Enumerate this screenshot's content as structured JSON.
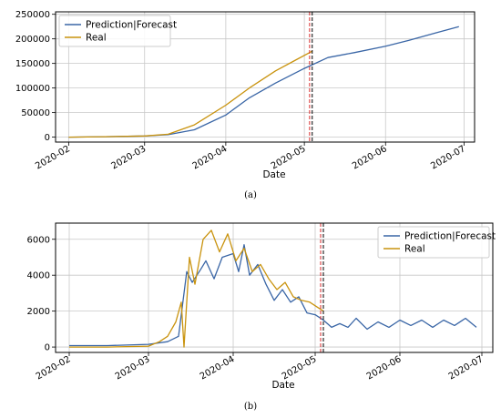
{
  "colors": {
    "prediction": "#3a66a6",
    "real": "#c9930e",
    "vline_red": "#d62728",
    "vline_black": "#000000",
    "grid": "#c8c8c8"
  },
  "chart_data": [
    {
      "type": "line",
      "caption_label": "a",
      "xlabel": "Date",
      "ylabel": "",
      "xlim": [
        "2020-01-27",
        "2020-07-05"
      ],
      "ylim": [
        -10000,
        255000
      ],
      "x_ticks": [
        "2020-02",
        "2020-03",
        "2020-04",
        "2020-05",
        "2020-06",
        "2020-07"
      ],
      "y_ticks": [
        "0",
        "50000",
        "100000",
        "150000",
        "200000",
        "250000"
      ],
      "y_tick_values": [
        0,
        50000,
        100000,
        150000,
        200000,
        250000
      ],
      "grid": true,
      "legend_position": "upper-left",
      "vertical_markers": [
        "2020-05-03",
        "2020-05-04"
      ],
      "series": [
        {
          "name": "Prediction|Forecast",
          "color_key": "prediction",
          "points": [
            [
              "2020-02-01",
              0
            ],
            [
              "2020-02-15",
              1000
            ],
            [
              "2020-03-01",
              2500
            ],
            [
              "2020-03-10",
              5000
            ],
            [
              "2020-03-20",
              15000
            ],
            [
              "2020-04-01",
              45000
            ],
            [
              "2020-04-10",
              80000
            ],
            [
              "2020-04-20",
              110000
            ],
            [
              "2020-05-01",
              140000
            ],
            [
              "2020-05-10",
              162000
            ],
            [
              "2020-05-20",
              172000
            ],
            [
              "2020-06-01",
              185000
            ],
            [
              "2020-06-10",
              197000
            ],
            [
              "2020-06-20",
              212000
            ],
            [
              "2020-06-29",
              225000
            ]
          ]
        },
        {
          "name": "Real",
          "color_key": "real",
          "points": [
            [
              "2020-02-01",
              0
            ],
            [
              "2020-02-15",
              1000
            ],
            [
              "2020-03-01",
              2500
            ],
            [
              "2020-03-10",
              6000
            ],
            [
              "2020-03-20",
              25000
            ],
            [
              "2020-04-01",
              65000
            ],
            [
              "2020-04-10",
              100000
            ],
            [
              "2020-04-20",
              135000
            ],
            [
              "2020-04-27",
              155000
            ],
            [
              "2020-05-04",
              175000
            ]
          ]
        }
      ]
    },
    {
      "type": "line",
      "caption_label": "b",
      "xlabel": "Date",
      "ylabel": "",
      "xlim": [
        "2020-01-27",
        "2020-07-05"
      ],
      "ylim": [
        -300,
        6900
      ],
      "x_ticks": [
        "2020-02",
        "2020-03",
        "2020-04",
        "2020-05",
        "2020-06",
        "2020-07"
      ],
      "y_ticks": [
        "0",
        "2000",
        "4000",
        "6000"
      ],
      "y_tick_values": [
        0,
        2000,
        4000,
        6000
      ],
      "grid": true,
      "legend_position": "upper-right",
      "vertical_markers": [
        "2020-05-03",
        "2020-05-04"
      ],
      "series": [
        {
          "name": "Prediction|Forecast",
          "color_key": "prediction",
          "points": [
            [
              "2020-02-01",
              80
            ],
            [
              "2020-02-15",
              80
            ],
            [
              "2020-03-01",
              150
            ],
            [
              "2020-03-08",
              300
            ],
            [
              "2020-03-12",
              600
            ],
            [
              "2020-03-15",
              4200
            ],
            [
              "2020-03-17",
              3600
            ],
            [
              "2020-03-20",
              4300
            ],
            [
              "2020-03-22",
              4800
            ],
            [
              "2020-03-25",
              3800
            ],
            [
              "2020-03-28",
              5000
            ],
            [
              "2020-04-01",
              5200
            ],
            [
              "2020-04-03",
              4200
            ],
            [
              "2020-04-05",
              5700
            ],
            [
              "2020-04-07",
              4000
            ],
            [
              "2020-04-10",
              4600
            ],
            [
              "2020-04-13",
              3500
            ],
            [
              "2020-04-16",
              2600
            ],
            [
              "2020-04-19",
              3200
            ],
            [
              "2020-04-22",
              2500
            ],
            [
              "2020-04-25",
              2800
            ],
            [
              "2020-04-28",
              1900
            ],
            [
              "2020-05-01",
              1800
            ],
            [
              "2020-05-04",
              1500
            ],
            [
              "2020-05-07",
              1100
            ],
            [
              "2020-05-10",
              1300
            ],
            [
              "2020-05-13",
              1100
            ],
            [
              "2020-05-16",
              1600
            ],
            [
              "2020-05-20",
              1000
            ],
            [
              "2020-05-24",
              1400
            ],
            [
              "2020-05-28",
              1100
            ],
            [
              "2020-06-01",
              1500
            ],
            [
              "2020-06-05",
              1200
            ],
            [
              "2020-06-09",
              1500
            ],
            [
              "2020-06-13",
              1100
            ],
            [
              "2020-06-17",
              1500
            ],
            [
              "2020-06-21",
              1200
            ],
            [
              "2020-06-25",
              1600
            ],
            [
              "2020-06-29",
              1100
            ]
          ]
        },
        {
          "name": "Real",
          "color_key": "real",
          "points": [
            [
              "2020-02-01",
              0
            ],
            [
              "2020-02-15",
              0
            ],
            [
              "2020-03-01",
              50
            ],
            [
              "2020-03-05",
              300
            ],
            [
              "2020-03-08",
              600
            ],
            [
              "2020-03-11",
              1400
            ],
            [
              "2020-03-13",
              2500
            ],
            [
              "2020-03-14",
              0
            ],
            [
              "2020-03-16",
              5000
            ],
            [
              "2020-03-18",
              3500
            ],
            [
              "2020-03-21",
              6000
            ],
            [
              "2020-03-24",
              6500
            ],
            [
              "2020-03-27",
              5300
            ],
            [
              "2020-03-30",
              6300
            ],
            [
              "2020-04-02",
              4800
            ],
            [
              "2020-04-05",
              5500
            ],
            [
              "2020-04-08",
              4200
            ],
            [
              "2020-04-11",
              4600
            ],
            [
              "2020-04-14",
              3800
            ],
            [
              "2020-04-17",
              3200
            ],
            [
              "2020-04-20",
              3600
            ],
            [
              "2020-04-23",
              2800
            ],
            [
              "2020-04-26",
              2600
            ],
            [
              "2020-04-29",
              2500
            ],
            [
              "2020-05-02",
              2200
            ],
            [
              "2020-05-04",
              2000
            ]
          ]
        }
      ]
    }
  ],
  "captions": [
    "(a)",
    "(b)"
  ]
}
